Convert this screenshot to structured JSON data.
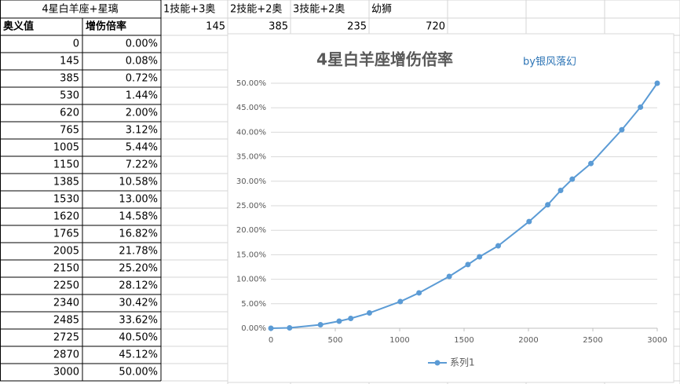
{
  "table": {
    "header": "4星白羊座+星璃",
    "columns": [
      "1技能+3奥",
      "2技能+2奥",
      "3技能+2奥",
      "幼狮"
    ],
    "labels": [
      "奥义值",
      "增伤倍率"
    ],
    "column_values": [
      145,
      385,
      235,
      720
    ],
    "rows": [
      [
        0,
        "0.00%"
      ],
      [
        145,
        "0.08%"
      ],
      [
        385,
        "0.72%"
      ],
      [
        530,
        "1.44%"
      ],
      [
        620,
        "2.00%"
      ],
      [
        765,
        "3.12%"
      ],
      [
        1005,
        "5.44%"
      ],
      [
        1150,
        "7.22%"
      ],
      [
        1385,
        "10.58%"
      ],
      [
        1530,
        "13.00%"
      ],
      [
        1620,
        "14.58%"
      ],
      [
        1765,
        "16.82%"
      ],
      [
        2005,
        "21.78%"
      ],
      [
        2150,
        "25.20%"
      ],
      [
        2250,
        "28.12%"
      ],
      [
        2340,
        "30.42%"
      ],
      [
        2485,
        "33.62%"
      ],
      [
        2725,
        "40.50%"
      ],
      [
        2870,
        "45.12%"
      ],
      [
        3000,
        "50.00%"
      ]
    ]
  },
  "chart_data": {
    "type": "line",
    "title": "4星白羊座增伤倍率",
    "subtitle": "by银风落幻",
    "x": [
      0,
      145,
      385,
      530,
      620,
      765,
      1005,
      1150,
      1385,
      1530,
      1620,
      1765,
      2005,
      2150,
      2250,
      2340,
      2485,
      2725,
      2870,
      3000
    ],
    "series": [
      {
        "name": "系列1",
        "color": "#5b9bd5",
        "values": [
          0,
          0.08,
          0.72,
          1.44,
          2.0,
          3.12,
          5.44,
          7.22,
          10.58,
          13.0,
          14.58,
          16.82,
          21.78,
          25.2,
          28.12,
          30.42,
          33.62,
          40.5,
          45.12,
          50.0
        ]
      }
    ],
    "xlim": [
      0,
      3000
    ],
    "xticks": [
      0,
      500,
      1000,
      1500,
      2000,
      2500,
      3000
    ],
    "ylim": [
      0,
      50
    ],
    "yticks": [
      {
        "value": 0,
        "label": "0.00%"
      },
      {
        "value": 5,
        "label": "5.00%"
      },
      {
        "value": 10,
        "label": "10.00%"
      },
      {
        "value": 15,
        "label": "15.00%"
      },
      {
        "value": 20,
        "label": "20.00%"
      },
      {
        "value": 25,
        "label": "25.00%"
      },
      {
        "value": 30,
        "label": "30.00%"
      },
      {
        "value": 35,
        "label": "35.00%"
      },
      {
        "value": 40,
        "label": "40.00%"
      },
      {
        "value": 45,
        "label": "45.00%"
      },
      {
        "value": 50,
        "label": "50.00%"
      }
    ],
    "grid": true,
    "legend": "bottom"
  }
}
